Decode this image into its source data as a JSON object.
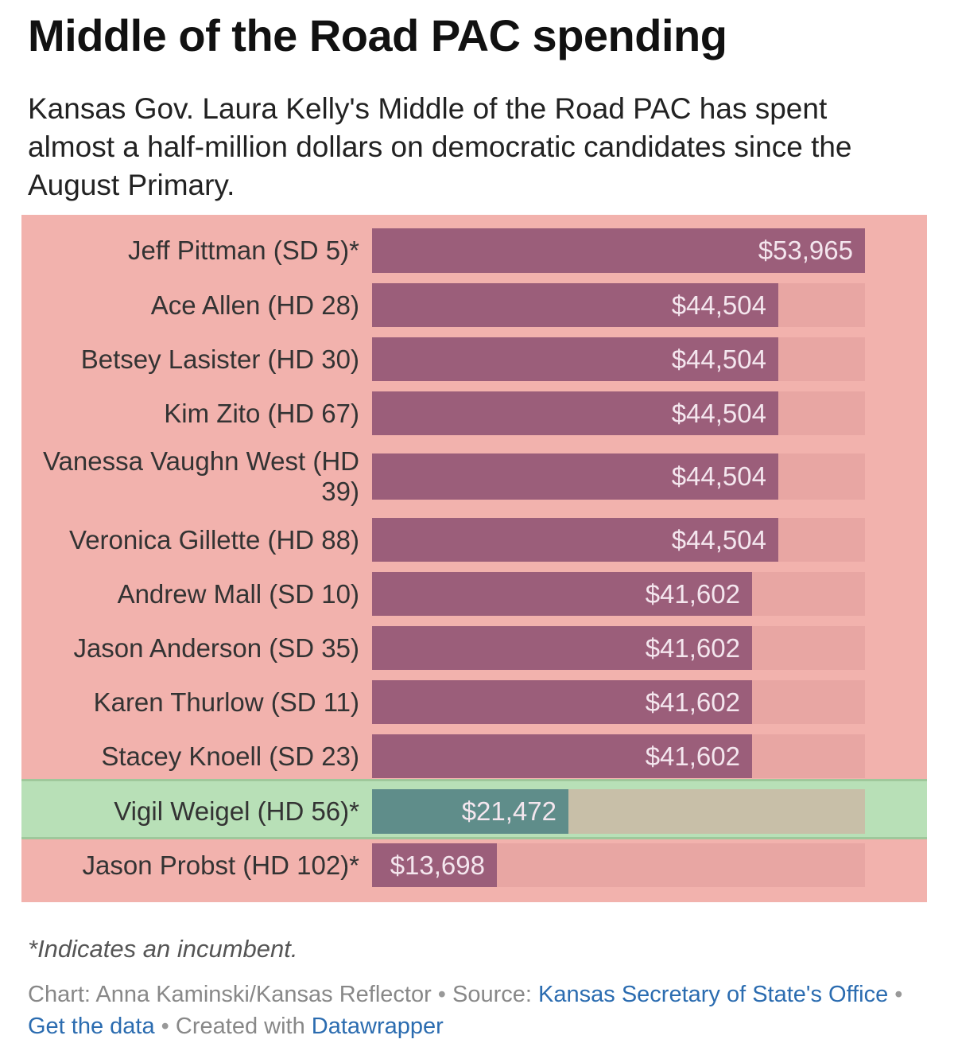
{
  "title": "Middle of the Road PAC spending",
  "subtitle": "Kansas Gov. Laura Kelly's Middle of the Road PAC has spent almost a half-million dollars on democratic candidates since the August Primary.",
  "colors": {
    "bar": "#9b5e7a",
    "bar_highlight": "#5f8d8a",
    "background": "#f2b2ad",
    "highlight_background": "#b8e0b7",
    "link": "#2b6cb0"
  },
  "chart_data": {
    "type": "bar",
    "orientation": "horizontal",
    "xlim": [
      0,
      53965
    ],
    "categories": [
      "Jeff Pittman (SD 5)*",
      "Ace Allen (HD 28)",
      "Betsey Lasister (HD 30)",
      "Kim Zito (HD 67)",
      "Vanessa Vaughn West (HD 39)",
      "Veronica Gillette (HD 88)",
      "Andrew Mall (SD 10)",
      "Jason Anderson (SD 35)",
      "Karen Thurlow (SD 11)",
      "Stacey Knoell (SD 23)",
      "Vigil Weigel (HD 56)*",
      "Jason Probst (HD 102)*"
    ],
    "values": [
      53965,
      44504,
      44504,
      44504,
      44504,
      44504,
      41602,
      41602,
      41602,
      41602,
      21472,
      13698
    ],
    "value_labels": [
      "$53,965",
      "$44,504",
      "$44,504",
      "$44,504",
      "$44,504",
      "$44,504",
      "$41,602",
      "$41,602",
      "$41,602",
      "$41,602",
      "$21,472",
      "$13,698"
    ],
    "highlighted_category": "Vigil Weigel (HD 56)*"
  },
  "footer": {
    "note": "*Indicates an incumbent.",
    "chart_prefix": "Chart: Anna Kaminski/Kansas Reflector",
    "separator": " • ",
    "source_prefix": "Source: ",
    "source_link": "Kansas Secretary of State's Office",
    "get_data_link": "Get the data",
    "created_prefix": "Created with ",
    "created_link": "Datawrapper"
  }
}
